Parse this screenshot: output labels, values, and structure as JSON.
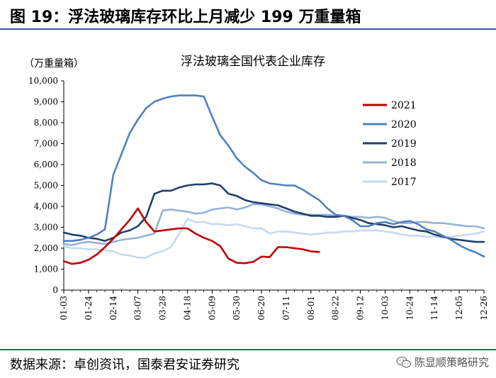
{
  "figure": {
    "title": "图 19：浮法玻璃库存环比上月减少 199 万重量箱",
    "source": "数据来源：卓创资讯，国泰君安证券研究",
    "watermark": "陈显顺策略研究",
    "watermark_icon": "wechat-icon"
  },
  "chart_data": {
    "type": "line",
    "title": "浮法玻璃全国代表企业库存",
    "ylabel": "（万重量箱）",
    "xlabel": "",
    "ylim": [
      0,
      10000
    ],
    "yticks": [
      0,
      1000,
      2000,
      3000,
      4000,
      5000,
      6000,
      7000,
      8000,
      9000,
      10000
    ],
    "ytick_labels": [
      "0",
      "1,000",
      "2,000",
      "3,000",
      "4,000",
      "5,000",
      "6,000",
      "7,000",
      "8,000",
      "9,000",
      "10,000"
    ],
    "xtick_labels": [
      "01-03",
      "01-24",
      "02-14",
      "03-07",
      "03-28",
      "04-18",
      "05-09",
      "05-30",
      "06-20",
      "07-11",
      "08-01",
      "08-22",
      "09-12",
      "10-03",
      "10-24",
      "11-14",
      "12-05",
      "12-26"
    ],
    "x_range_weeks": [
      0,
      51
    ],
    "grid": false,
    "legend": "upper-right",
    "series": [
      {
        "name": "2021",
        "color": "#c00000",
        "points": [
          [
            0,
            1380
          ],
          [
            1,
            1250
          ],
          [
            2,
            1300
          ],
          [
            3,
            1450
          ],
          [
            4,
            1700
          ],
          [
            5,
            2050
          ],
          [
            6,
            2450
          ],
          [
            7,
            2900
          ],
          [
            8,
            3350
          ],
          [
            9,
            3900
          ],
          [
            10,
            3250
          ],
          [
            11,
            2800
          ],
          [
            12,
            2850
          ],
          [
            13,
            2900
          ],
          [
            14,
            2950
          ],
          [
            15,
            2950
          ],
          [
            16,
            2700
          ],
          [
            17,
            2500
          ],
          [
            18,
            2350
          ],
          [
            19,
            2100
          ],
          [
            20,
            1500
          ],
          [
            21,
            1300
          ],
          [
            22,
            1280
          ],
          [
            23,
            1350
          ],
          [
            24,
            1600
          ],
          [
            25,
            1580
          ],
          [
            26,
            2050
          ],
          [
            27,
            2050
          ],
          [
            28,
            2000
          ],
          [
            29,
            1950
          ],
          [
            30,
            1850
          ],
          [
            31,
            1820
          ]
        ]
      },
      {
        "name": "2020",
        "color": "#4f81bd",
        "points": [
          [
            0,
            2350
          ],
          [
            1,
            2350
          ],
          [
            2,
            2400
          ],
          [
            3,
            2500
          ],
          [
            4,
            2650
          ],
          [
            5,
            2900
          ],
          [
            6,
            5500
          ],
          [
            7,
            6500
          ],
          [
            8,
            7500
          ],
          [
            9,
            8150
          ],
          [
            10,
            8700
          ],
          [
            11,
            9000
          ],
          [
            12,
            9150
          ],
          [
            13,
            9250
          ],
          [
            14,
            9300
          ],
          [
            15,
            9300
          ],
          [
            16,
            9300
          ],
          [
            17,
            9250
          ],
          [
            18,
            8300
          ],
          [
            19,
            7400
          ],
          [
            20,
            6900
          ],
          [
            21,
            6300
          ],
          [
            22,
            5900
          ],
          [
            23,
            5600
          ],
          [
            24,
            5250
          ],
          [
            25,
            5100
          ],
          [
            26,
            5050
          ],
          [
            27,
            5000
          ],
          [
            28,
            5000
          ],
          [
            29,
            4800
          ],
          [
            30,
            4550
          ],
          [
            31,
            4300
          ],
          [
            32,
            3900
          ],
          [
            33,
            3600
          ],
          [
            34,
            3550
          ],
          [
            35,
            3350
          ],
          [
            36,
            3050
          ],
          [
            37,
            3050
          ],
          [
            38,
            3200
          ],
          [
            39,
            3250
          ],
          [
            40,
            3150
          ],
          [
            41,
            3250
          ],
          [
            42,
            3300
          ],
          [
            43,
            3150
          ],
          [
            44,
            2900
          ],
          [
            45,
            2800
          ],
          [
            46,
            2600
          ],
          [
            47,
            2400
          ],
          [
            48,
            2150
          ],
          [
            49,
            1950
          ],
          [
            50,
            1800
          ],
          [
            51,
            1600
          ]
        ]
      },
      {
        "name": "2019",
        "color": "#1f3f6e",
        "points": [
          [
            0,
            2750
          ],
          [
            1,
            2650
          ],
          [
            2,
            2600
          ],
          [
            3,
            2500
          ],
          [
            4,
            2450
          ],
          [
            5,
            2350
          ],
          [
            6,
            2500
          ],
          [
            7,
            2750
          ],
          [
            8,
            2850
          ],
          [
            9,
            3050
          ],
          [
            10,
            3500
          ],
          [
            11,
            4600
          ],
          [
            12,
            4750
          ],
          [
            13,
            4750
          ],
          [
            14,
            4900
          ],
          [
            15,
            5000
          ],
          [
            16,
            5050
          ],
          [
            17,
            5050
          ],
          [
            18,
            5100
          ],
          [
            19,
            5000
          ],
          [
            20,
            4600
          ],
          [
            21,
            4500
          ],
          [
            22,
            4300
          ],
          [
            23,
            4200
          ],
          [
            24,
            4150
          ],
          [
            25,
            4100
          ],
          [
            26,
            4050
          ],
          [
            27,
            3900
          ],
          [
            28,
            3750
          ],
          [
            29,
            3650
          ],
          [
            30,
            3550
          ],
          [
            31,
            3550
          ],
          [
            32,
            3500
          ],
          [
            33,
            3500
          ],
          [
            34,
            3550
          ],
          [
            35,
            3450
          ],
          [
            36,
            3350
          ],
          [
            37,
            3200
          ],
          [
            38,
            3150
          ],
          [
            39,
            3100
          ],
          [
            40,
            3000
          ],
          [
            41,
            3050
          ],
          [
            42,
            2950
          ],
          [
            43,
            2850
          ],
          [
            44,
            2800
          ],
          [
            45,
            2650
          ],
          [
            46,
            2550
          ],
          [
            47,
            2450
          ],
          [
            48,
            2400
          ],
          [
            49,
            2350
          ],
          [
            50,
            2300
          ],
          [
            51,
            2300
          ]
        ]
      },
      {
        "name": "2018",
        "color": "#95b3d7",
        "points": [
          [
            0,
            2200
          ],
          [
            1,
            2150
          ],
          [
            2,
            2250
          ],
          [
            3,
            2300
          ],
          [
            4,
            2250
          ],
          [
            5,
            2200
          ],
          [
            6,
            2300
          ],
          [
            7,
            2400
          ],
          [
            8,
            2450
          ],
          [
            9,
            2500
          ],
          [
            10,
            2600
          ],
          [
            11,
            2700
          ],
          [
            12,
            3800
          ],
          [
            13,
            3850
          ],
          [
            14,
            3800
          ],
          [
            15,
            3750
          ],
          [
            16,
            3650
          ],
          [
            17,
            3700
          ],
          [
            18,
            3850
          ],
          [
            19,
            3900
          ],
          [
            20,
            3950
          ],
          [
            21,
            3850
          ],
          [
            22,
            3950
          ],
          [
            23,
            4100
          ],
          [
            24,
            4100
          ],
          [
            25,
            4000
          ],
          [
            26,
            3900
          ],
          [
            27,
            3750
          ],
          [
            28,
            3650
          ],
          [
            29,
            3600
          ],
          [
            30,
            3600
          ],
          [
            31,
            3600
          ],
          [
            32,
            3600
          ],
          [
            33,
            3550
          ],
          [
            34,
            3550
          ],
          [
            35,
            3500
          ],
          [
            36,
            3500
          ],
          [
            37,
            3450
          ],
          [
            38,
            3500
          ],
          [
            39,
            3450
          ],
          [
            40,
            3300
          ],
          [
            41,
            3200
          ],
          [
            42,
            3200
          ],
          [
            43,
            3250
          ],
          [
            44,
            3250
          ],
          [
            45,
            3200
          ],
          [
            46,
            3200
          ],
          [
            47,
            3150
          ],
          [
            48,
            3100
          ],
          [
            49,
            3050
          ],
          [
            50,
            3050
          ],
          [
            51,
            2950
          ]
        ]
      },
      {
        "name": "2017",
        "color": "#c6d9f1",
        "points": [
          [
            0,
            2100
          ],
          [
            1,
            2000
          ],
          [
            2,
            2000
          ],
          [
            3,
            1950
          ],
          [
            4,
            1950
          ],
          [
            5,
            1900
          ],
          [
            6,
            1850
          ],
          [
            7,
            1700
          ],
          [
            8,
            1650
          ],
          [
            9,
            1550
          ],
          [
            10,
            1550
          ],
          [
            11,
            1750
          ],
          [
            12,
            1850
          ],
          [
            13,
            2050
          ],
          [
            14,
            2700
          ],
          [
            15,
            3400
          ],
          [
            16,
            3250
          ],
          [
            17,
            3250
          ],
          [
            18,
            3150
          ],
          [
            19,
            3150
          ],
          [
            20,
            3100
          ],
          [
            21,
            3150
          ],
          [
            22,
            3050
          ],
          [
            23,
            2950
          ],
          [
            24,
            2950
          ],
          [
            25,
            2700
          ],
          [
            26,
            2800
          ],
          [
            27,
            2800
          ],
          [
            28,
            2750
          ],
          [
            29,
            2700
          ],
          [
            30,
            2650
          ],
          [
            31,
            2700
          ],
          [
            32,
            2750
          ],
          [
            33,
            2750
          ],
          [
            34,
            2800
          ],
          [
            35,
            2800
          ],
          [
            36,
            2850
          ],
          [
            37,
            2850
          ],
          [
            38,
            2850
          ],
          [
            39,
            2800
          ],
          [
            40,
            2750
          ],
          [
            41,
            2650
          ],
          [
            42,
            2600
          ],
          [
            43,
            2600
          ],
          [
            44,
            2550
          ],
          [
            45,
            2550
          ],
          [
            46,
            2500
          ],
          [
            47,
            2550
          ],
          [
            48,
            2600
          ],
          [
            49,
            2650
          ],
          [
            50,
            2700
          ],
          [
            51,
            2800
          ]
        ]
      }
    ]
  }
}
